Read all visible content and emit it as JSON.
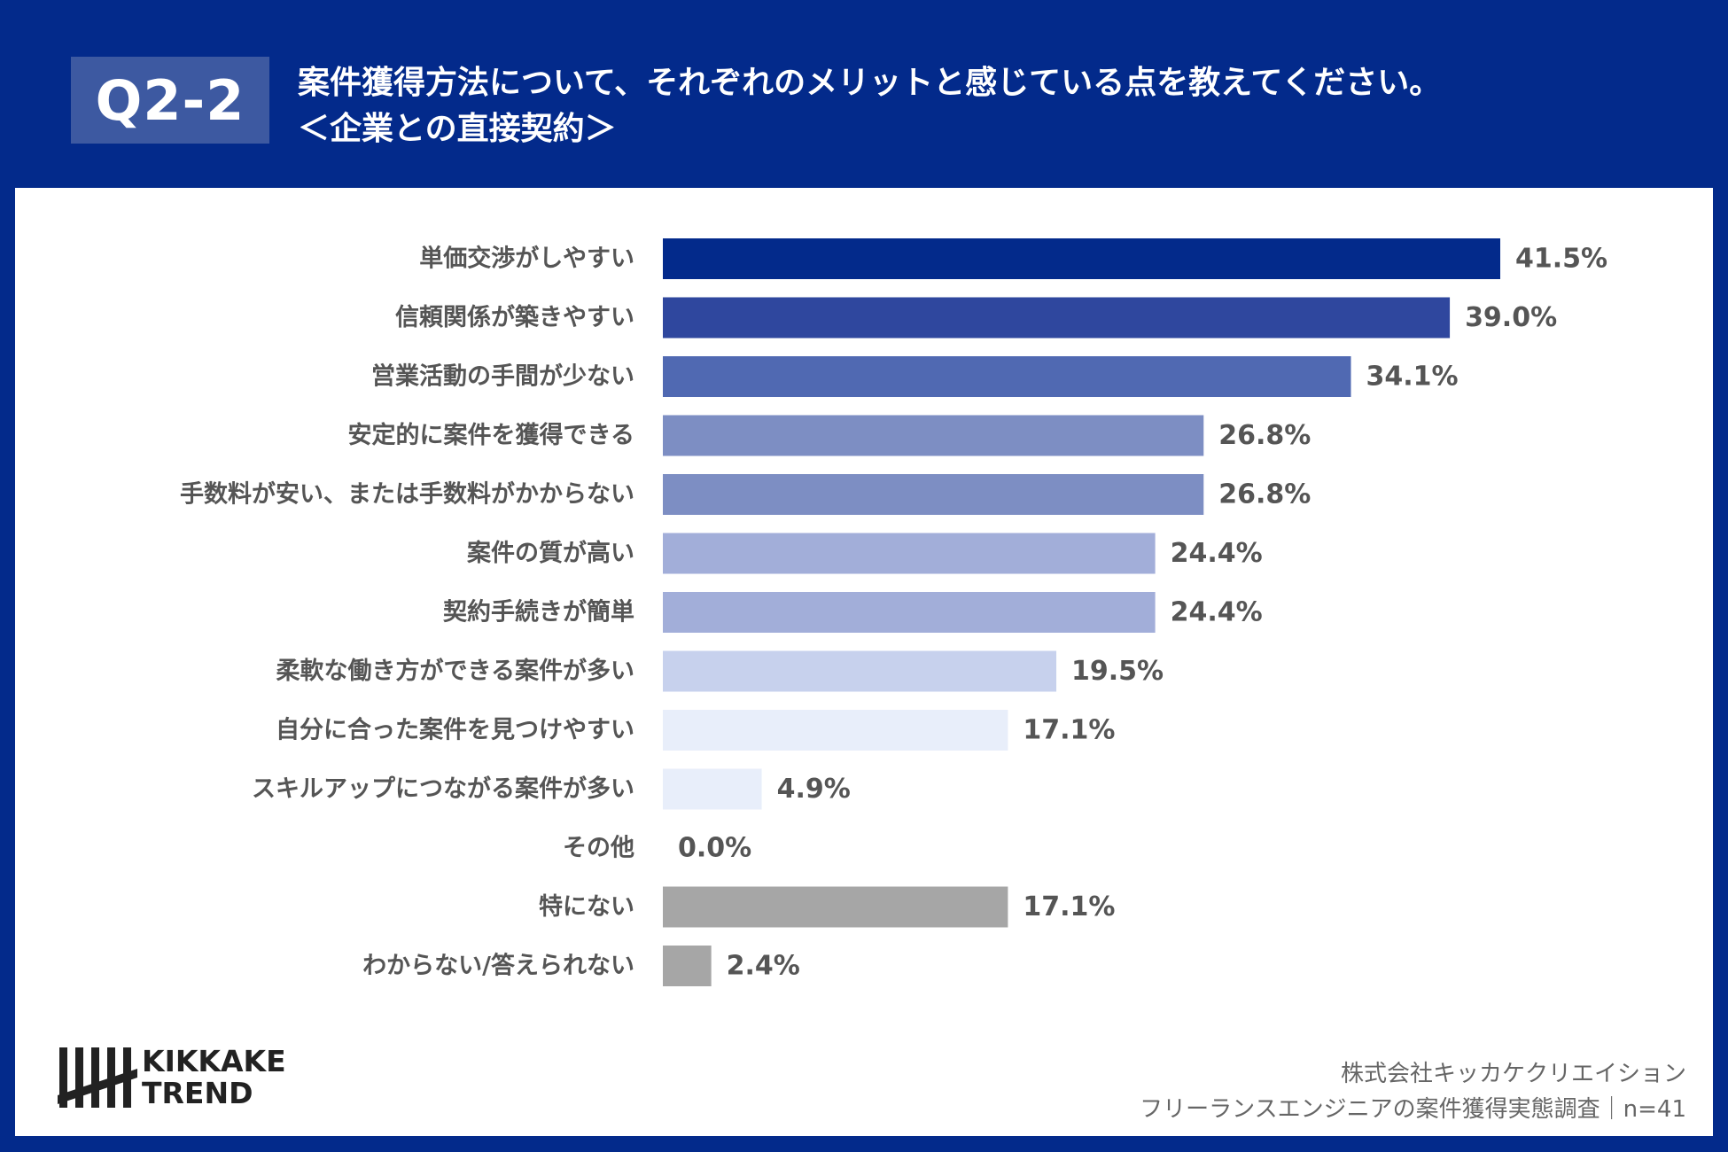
{
  "header": {
    "badge": "Q2-2",
    "title_line1": "案件獲得方法について、それぞれのメリットと感じている点を教えてください。",
    "title_line2": "＜企業との直接契約＞"
  },
  "chart_data": {
    "type": "bar",
    "orientation": "horizontal",
    "categories": [
      "単価交渉がしやすい",
      "信頼関係が築きやすい",
      "営業活動の手間が少ない",
      "安定的に案件を獲得できる",
      "手数料が安い、または手数料がかからない",
      "案件の質が高い",
      "契約手続きが簡単",
      "柔軟な働き方ができる案件が多い",
      "自分に合った案件を見つけやすい",
      "スキルアップにつながる案件が多い",
      "その他",
      "特にない",
      "わからない/答えられない"
    ],
    "values": [
      41.5,
      39.0,
      34.1,
      26.8,
      26.8,
      24.4,
      24.4,
      19.5,
      17.1,
      4.9,
      0.0,
      17.1,
      2.4
    ],
    "value_labels": [
      "41.5%",
      "39.0%",
      "34.1%",
      "26.8%",
      "26.8%",
      "24.4%",
      "24.4%",
      "19.5%",
      "17.1%",
      "4.9%",
      "0.0%",
      "17.1%",
      "2.4%"
    ],
    "colors": [
      "#032a8b",
      "#2f479e",
      "#5069b2",
      "#7d8ec3",
      "#7d8ec3",
      "#a2aed9",
      "#a2aed9",
      "#c7d1ed",
      "#e8eefa",
      "#e8eefa",
      "#e8eefa",
      "#a6a6a6",
      "#a6a6a6"
    ],
    "xlim": [
      0,
      41.5
    ],
    "grid": false,
    "legend": "none"
  },
  "footer": {
    "logo_line1": "KIKKAKE",
    "logo_line2": "TREND",
    "source_line1": "株式会社キッカケクリエイション",
    "source_line2": "フリーランスエンジニアの案件獲得実態調査｜n=41"
  }
}
